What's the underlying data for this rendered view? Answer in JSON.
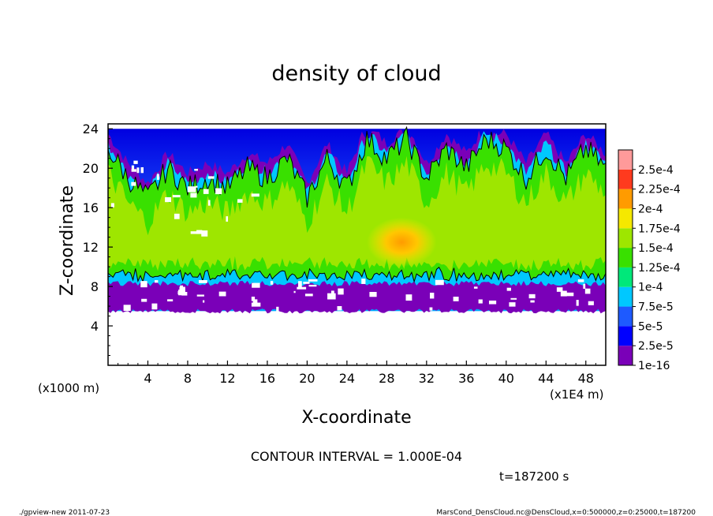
{
  "chart_data": {
    "type": "heatmap",
    "title": "density of cloud",
    "xlabel": "X-coordinate",
    "ylabel": "Z-coordinate",
    "x_unit_note": "(x1E4 m)",
    "y_unit_note": "(x1000 m)",
    "xlim": [
      0,
      50
    ],
    "ylim": [
      0,
      24.5
    ],
    "x_ticks": [
      4,
      8,
      12,
      16,
      20,
      24,
      28,
      32,
      36,
      40,
      44,
      48
    ],
    "y_ticks": [
      4,
      8,
      12,
      16,
      20,
      24
    ],
    "colorbar": {
      "labels": [
        "1e-16",
        "2.5e-5",
        "5e-5",
        "7.5e-5",
        "1e-4",
        "1.25e-4",
        "1.5e-4",
        "1.75e-4",
        "2e-4",
        "2.25e-4",
        "2.5e-4"
      ],
      "colors": [
        "#7a00b8",
        "#0000ff",
        "#1e5aff",
        "#00c8ff",
        "#00e87a",
        "#39e000",
        "#9ee600",
        "#f5e800",
        "#ff9b00",
        "#ff3a1e",
        "#ff9a9a"
      ]
    },
    "contour_interval": "CONTOUR INTERVAL = 1.000E-04",
    "time_label": "t=187200 s",
    "cloud_layer": {
      "z_base": 5.5,
      "z_top": 24,
      "top_profile": [
        [
          0,
          22
        ],
        [
          2,
          19
        ],
        [
          4,
          17
        ],
        [
          6,
          20
        ],
        [
          8,
          18
        ],
        [
          10,
          19
        ],
        [
          12,
          18
        ],
        [
          14,
          20
        ],
        [
          16,
          19
        ],
        [
          18,
          21
        ],
        [
          20,
          17
        ],
        [
          22,
          21
        ],
        [
          24,
          18
        ],
        [
          26,
          23
        ],
        [
          28,
          21
        ],
        [
          30,
          23
        ],
        [
          32,
          19
        ],
        [
          34,
          22
        ],
        [
          36,
          20
        ],
        [
          38,
          23
        ],
        [
          40,
          22
        ],
        [
          42,
          19
        ],
        [
          44,
          22
        ],
        [
          46,
          19
        ],
        [
          48,
          22
        ],
        [
          50,
          20
        ]
      ],
      "core": {
        "x": [
          26,
          33
        ],
        "z": [
          10,
          15
        ]
      }
    }
  },
  "footer": {
    "left": "./gpview-new  2011-07-23",
    "right": "MarsCond_DensCloud.nc@DensCloud,x=0:500000,z=0:25000,t=187200"
  }
}
